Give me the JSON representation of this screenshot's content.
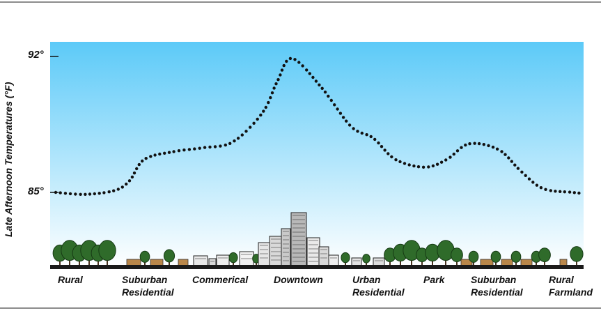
{
  "chart_data": {
    "type": "line",
    "title": "",
    "ylabel": "Late Afternoon Temperatures (°F)",
    "xlabel": "",
    "y_tick_labels": [
      "92°",
      "85°"
    ],
    "ylim": [
      85,
      92
    ],
    "categories": [
      [
        "Rural"
      ],
      [
        "Suburban",
        "Residential"
      ],
      [
        "Commerical"
      ],
      [
        "Downtown"
      ],
      [
        "Urban",
        "Residential"
      ],
      [
        "Park"
      ],
      [
        "Suburban",
        "Residential"
      ],
      [
        "Rural",
        "Farmland"
      ]
    ],
    "series": [
      {
        "style": "dotted",
        "x": [
          0,
          0.4,
          0.8,
          1.0,
          1.2,
          1.6,
          2.0,
          2.4,
          2.8,
          3.0,
          3.2,
          3.6,
          4.0,
          4.3,
          4.6,
          5.0,
          5.3,
          5.6,
          6.0,
          6.3,
          6.6,
          7.0,
          7.3
        ],
        "y": [
          85.0,
          84.9,
          85.1,
          85.6,
          86.7,
          87.1,
          87.3,
          87.6,
          89.1,
          90.7,
          91.9,
          90.4,
          88.4,
          87.8,
          86.7,
          86.3,
          86.7,
          87.5,
          87.2,
          86.1,
          85.2,
          85.0,
          84.9
        ]
      }
    ],
    "colors": {
      "sky_top": "#5ccaf8",
      "sky_bottom": "#ffffff",
      "line": "#111111"
    }
  }
}
